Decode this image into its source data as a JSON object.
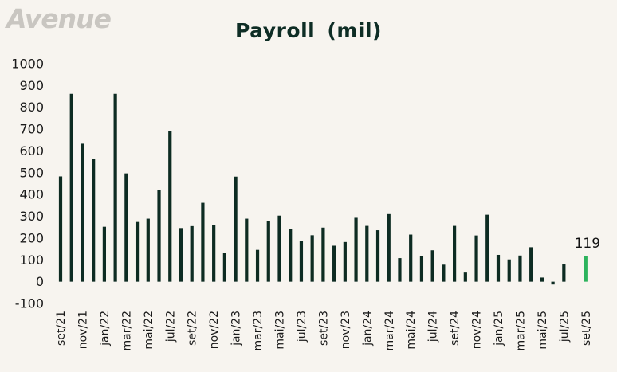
{
  "logo": {
    "text": "Avenue"
  },
  "chart_data": {
    "type": "bar",
    "title": "Payroll  (mil)",
    "xlabel": "",
    "ylabel": "",
    "ylim": [
      -100,
      1000
    ],
    "yticks": [
      1000,
      900,
      800,
      700,
      600,
      500,
      400,
      300,
      200,
      100,
      0,
      -100
    ],
    "grid": false,
    "legend": "none",
    "categories": [
      "set/21",
      "out/21",
      "nov/21",
      "dez/21",
      "jan/22",
      "fev/22",
      "mar/22",
      "abr/22",
      "mai/22",
      "jun/22",
      "jul/22",
      "ago/22",
      "set/22",
      "out/22",
      "nov/22",
      "dez/22",
      "jan/23",
      "fev/23",
      "mar/23",
      "abr/23",
      "mai/23",
      "jun/23",
      "jul/23",
      "ago/23",
      "set/23",
      "out/23",
      "nov/23",
      "dez/23",
      "jan/24",
      "fev/24",
      "mar/24",
      "abr/24",
      "mai/24",
      "jun/24",
      "jul/24",
      "ago/24",
      "set/24",
      "out/24",
      "nov/24",
      "dez/24",
      "jan/25",
      "fev/25",
      "mar/25",
      "abr/25",
      "mai/25",
      "jun/25",
      "jul/25",
      "ago/25",
      "set/25"
    ],
    "x_tick_labels": [
      "set/21",
      "nov/21",
      "jan/22",
      "mar/22",
      "mai/22",
      "jul/22",
      "set/22",
      "nov/22",
      "jan/23",
      "mar/23",
      "mai/23",
      "jul/23",
      "set/23",
      "nov/23",
      "jan/24",
      "mar/24",
      "mai/24",
      "jul/24",
      "set/24",
      "nov/24",
      "jan/25",
      "mar/25",
      "mai/25",
      "jul/25",
      "set/25"
    ],
    "values": [
      483,
      862,
      633,
      565,
      252,
      862,
      497,
      274,
      289,
      421,
      690,
      246,
      255,
      362,
      259,
      133,
      482,
      289,
      146,
      278,
      303,
      242,
      186,
      213,
      248,
      165,
      182,
      293,
      256,
      236,
      310,
      108,
      216,
      118,
      144,
      78,
      256,
      42,
      212,
      307,
      123,
      102,
      120,
      158,
      19,
      -13,
      79,
      0,
      119
    ],
    "highlight": {
      "category": "set/25",
      "value": 119,
      "label": "119",
      "color": "#2db35d"
    },
    "bar_color": "#0d2b22"
  }
}
